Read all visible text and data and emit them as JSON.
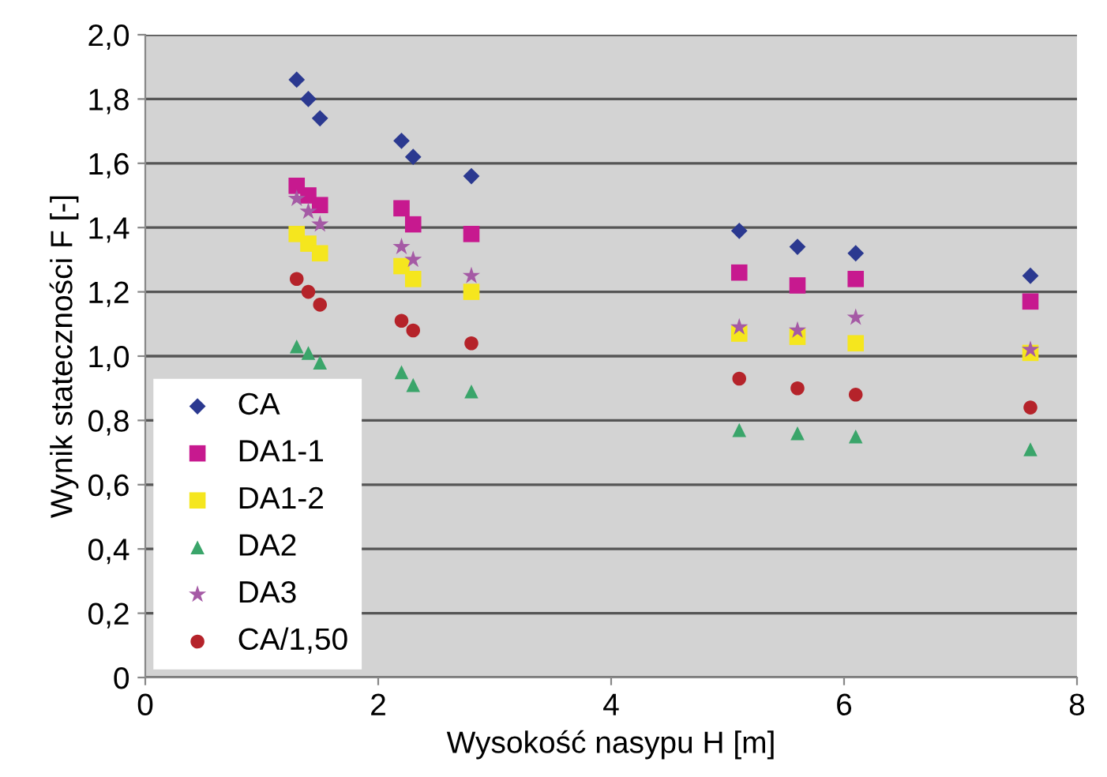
{
  "chart_data": {
    "type": "scatter",
    "xlabel": "Wysokość nasypu H [m]",
    "ylabel": "Wynik stateczności F [-]",
    "x": [
      1.3,
      1.4,
      1.5,
      2.2,
      2.3,
      2.8,
      5.1,
      5.6,
      6.1,
      7.6
    ],
    "series": [
      {
        "name": "CA",
        "color": "#2b3990",
        "marker": "diamond",
        "values": [
          1.86,
          1.8,
          1.74,
          1.67,
          1.62,
          1.56,
          1.39,
          1.34,
          1.32,
          1.25
        ]
      },
      {
        "name": "DA1-1",
        "color": "#c7198f",
        "marker": "square",
        "values": [
          1.53,
          1.5,
          1.47,
          1.46,
          1.41,
          1.38,
          1.26,
          1.22,
          1.24,
          1.17
        ]
      },
      {
        "name": "DA1-2",
        "color": "#f5e61e",
        "marker": "square",
        "values": [
          1.38,
          1.35,
          1.32,
          1.28,
          1.24,
          1.2,
          1.07,
          1.06,
          1.04,
          1.01
        ]
      },
      {
        "name": "DA2",
        "color": "#3aa56a",
        "marker": "triangle",
        "values": [
          1.03,
          1.01,
          0.98,
          0.95,
          0.91,
          0.89,
          0.77,
          0.76,
          0.75,
          0.71
        ]
      },
      {
        "name": "DA3",
        "color": "#a55aa5",
        "marker": "star",
        "values": [
          1.49,
          1.45,
          1.41,
          1.34,
          1.3,
          1.25,
          1.09,
          1.08,
          1.12,
          1.02
        ]
      },
      {
        "name": "CA/1,50",
        "color": "#b5232a",
        "marker": "circle",
        "values": [
          1.24,
          1.2,
          1.16,
          1.11,
          1.08,
          1.04,
          0.93,
          0.9,
          0.88,
          0.84
        ]
      }
    ],
    "xlim": [
      0,
      8
    ],
    "xticks": [
      0,
      2,
      4,
      6,
      8
    ],
    "ylim": [
      0,
      2.0
    ],
    "yticks": [
      0,
      {
        "value": 0.2,
        "label": "0,2"
      },
      {
        "value": 0.4,
        "label": "0,4"
      },
      {
        "value": 0.6,
        "label": "0,6"
      },
      {
        "value": 0.8,
        "label": "0,8"
      },
      {
        "value": 1.0,
        "label": "1,0"
      },
      {
        "value": 1.2,
        "label": "1,2"
      },
      {
        "value": 1.4,
        "label": "1,4"
      },
      {
        "value": 1.6,
        "label": "1,6"
      },
      {
        "value": 1.8,
        "label": "1,8"
      },
      {
        "value": 2.0,
        "label": "2,0"
      }
    ],
    "grid": "y",
    "legend": "bottom left"
  }
}
